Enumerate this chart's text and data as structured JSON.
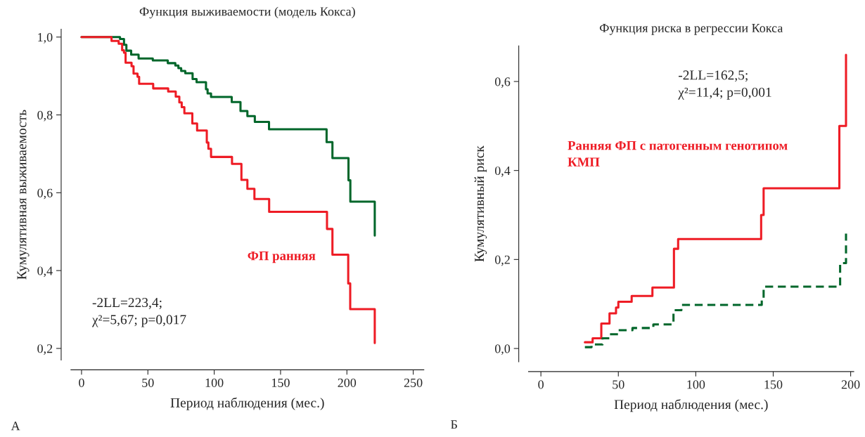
{
  "chart_data": [
    {
      "type": "step",
      "title": "Функция выживаемости (модель Кокса)",
      "xlabel": "Период наблюдения (мес.)",
      "ylabel": "Кумулятивная выживаемость",
      "xlim": [
        -8,
        258
      ],
      "ylim": [
        0.17,
        1.02
      ],
      "xticks": [
        0,
        50,
        100,
        150,
        200,
        250
      ],
      "yticks": [
        {
          "value": 0.2,
          "label": "0,2"
        },
        {
          "value": 0.4,
          "label": "0,4"
        },
        {
          "value": 0.6,
          "label": "0,6"
        },
        {
          "value": 0.8,
          "label": "0,8"
        },
        {
          "value": 1.0,
          "label": "1,0"
        }
      ],
      "grid": false,
      "legend": false,
      "annotations": [
        "-2LL=223,4;\nχ²=5,67; p=0,017",
        "А"
      ],
      "series": [
        {
          "color": "#00662a",
          "line_style": "solid",
          "x": [
            0,
            29,
            32,
            33.8,
            37.4,
            43,
            53.7,
            65,
            70.7,
            73,
            75.1,
            78.2,
            83.7,
            86.7,
            93.8,
            95,
            97.6,
            113.2,
            119.8,
            125,
            130.6,
            141.3,
            184.7,
            189.1,
            201.2,
            202.6,
            221,
            221
          ],
          "values": [
            1.0,
            0.995,
            0.98,
            0.965,
            0.955,
            0.945,
            0.94,
            0.933,
            0.927,
            0.92,
            0.913,
            0.907,
            0.892,
            0.884,
            0.866,
            0.855,
            0.846,
            0.833,
            0.81,
            0.797,
            0.782,
            0.763,
            0.73,
            0.689,
            0.632,
            0.577,
            0.577,
            0.49
          ]
        },
        {
          "name": "ФП ранняя",
          "color": "#ee1c25",
          "line_style": "solid",
          "x": [
            0,
            22.6,
            28,
            30.6,
            32,
            33.2,
            37.7,
            39.2,
            42.2,
            43.4,
            54,
            65.3,
            71,
            73.7,
            75.5,
            77.5,
            83.5,
            87.1,
            94.4,
            95.6,
            97.6,
            113.4,
            120.5,
            125,
            130.3,
            141.4,
            185,
            189.1,
            201,
            202.5,
            221,
            221
          ],
          "values": [
            1.0,
            0.99,
            0.983,
            0.966,
            0.96,
            0.934,
            0.925,
            0.906,
            0.898,
            0.88,
            0.868,
            0.86,
            0.847,
            0.832,
            0.82,
            0.804,
            0.778,
            0.76,
            0.729,
            0.713,
            0.692,
            0.674,
            0.633,
            0.61,
            0.584,
            0.551,
            0.507,
            0.441,
            0.367,
            0.301,
            0.301,
            0.214
          ]
        }
      ]
    },
    {
      "type": "step",
      "title": "Функция риска в регрессии Кокса",
      "xlabel": "Период наблюдения (мес.)",
      "ylabel": "Кумулятивный риск",
      "xlim": [
        -8,
        202
      ],
      "ylim": [
        -0.03,
        0.68
      ],
      "xticks": [
        0,
        50,
        100,
        150,
        200
      ],
      "yticks": [
        {
          "value": 0.0,
          "label": "0,0"
        },
        {
          "value": 0.2,
          "label": "0,2"
        },
        {
          "value": 0.4,
          "label": "0,4"
        },
        {
          "value": 0.6,
          "label": "0,6"
        }
      ],
      "grid": false,
      "legend": false,
      "annotations": [
        "-2LL=162,5;\nχ²=11,4; p=0,001",
        "Б"
      ],
      "series": [
        {
          "name": "Ранняя ФП с патогенным генотипом\nКМП",
          "color": "#ee1c25",
          "line_style": "solid",
          "x": [
            28.4,
            33.4,
            39,
            44.3,
            48.5,
            50,
            58.6,
            72,
            85.9,
            88.6,
            142.2,
            143.8,
            192.7,
            197,
            197
          ],
          "values": [
            0.014,
            0.023,
            0.056,
            0.079,
            0.092,
            0.105,
            0.118,
            0.137,
            0.224,
            0.246,
            0.3,
            0.36,
            0.5,
            0.5,
            0.66
          ]
        },
        {
          "color": "#00662a",
          "line_style": "dashed",
          "x": [
            28.4,
            32.7,
            39.8,
            44.6,
            49.9,
            59.1,
            72.6,
            85.6,
            90.7,
            142.6,
            143.8,
            193.2,
            197,
            197
          ],
          "values": [
            0.003,
            0.009,
            0.023,
            0.032,
            0.041,
            0.046,
            0.054,
            0.086,
            0.098,
            0.112,
            0.139,
            0.192,
            0.192,
            0.258
          ]
        }
      ]
    }
  ]
}
